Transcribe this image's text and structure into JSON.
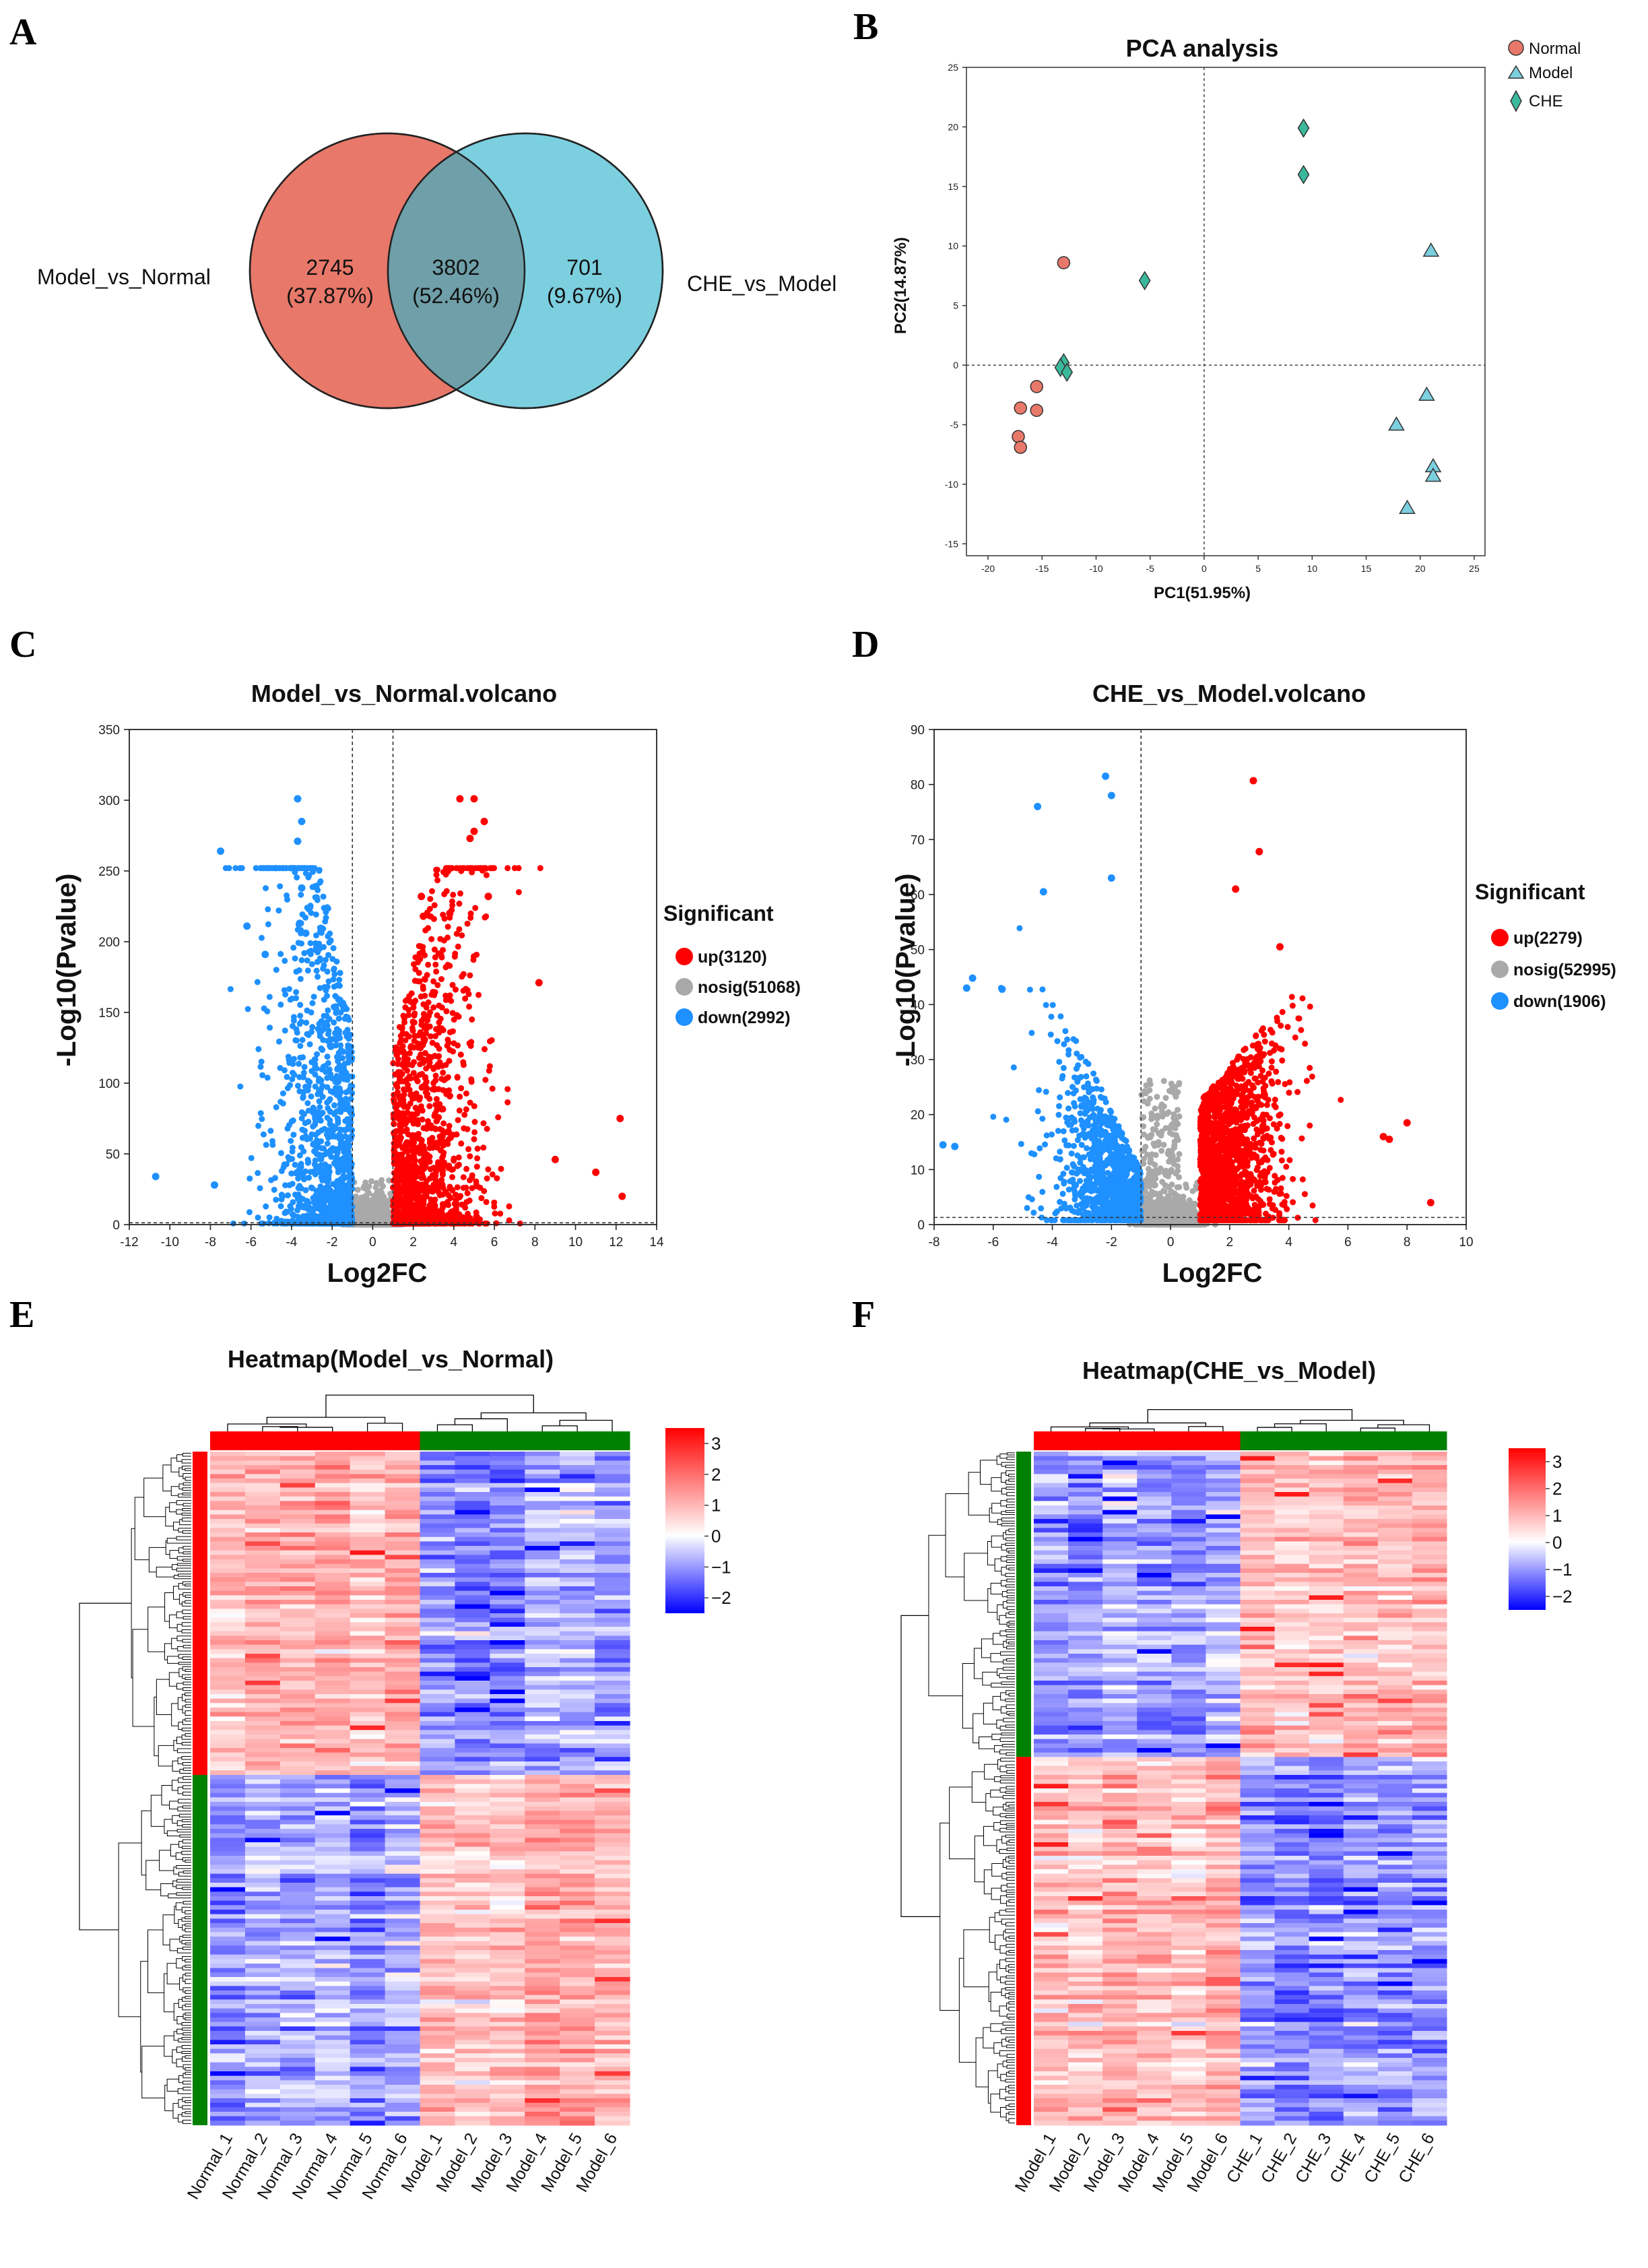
{
  "panel_letters": [
    "A",
    "B",
    "C",
    "D",
    "E",
    "F"
  ],
  "colors": {
    "normal": "#e8786a",
    "model": "#7ccfdf",
    "overlap": "#6f9fa9",
    "che": "#3bb89b",
    "up": "#ff0000",
    "nosig": "#a9a9a9",
    "down": "#1e90ff",
    "group_red": "#ff0000",
    "group_green": "#008000"
  },
  "chart_data": [
    {
      "panel": "A",
      "type": "venn",
      "sets": [
        "Model_vs_Normal",
        "CHE_vs_Model"
      ],
      "regions": [
        {
          "label": "Model_vs_Normal only",
          "count": "2745",
          "percent": "(37.87%)"
        },
        {
          "label": "intersection",
          "count": "3802",
          "percent": "(52.46%)"
        },
        {
          "label": "CHE_vs_Model only",
          "count": "701",
          "percent": "(9.67%)"
        }
      ]
    },
    {
      "panel": "B",
      "type": "scatter",
      "title": "PCA analysis",
      "xlabel": "PC1(51.95%)",
      "ylabel": "PC2(14.87%)",
      "xlim": [
        -22,
        26
      ],
      "ylim": [
        -16,
        25
      ],
      "xticks": [
        -20,
        -15,
        -10,
        -5,
        0,
        5,
        10,
        15,
        20,
        25
      ],
      "yticks": [
        -15,
        -10,
        -5,
        0,
        5,
        10,
        15,
        20,
        25
      ],
      "series": [
        {
          "name": "Normal",
          "marker": "circle",
          "points": [
            [
              -13,
              8.6
            ],
            [
              -17,
              -3.6
            ],
            [
              -15.5,
              -1.8
            ],
            [
              -15.5,
              -3.8
            ],
            [
              -17.2,
              -6.0
            ],
            [
              -17,
              -6.9
            ]
          ]
        },
        {
          "name": "Model",
          "marker": "triangle",
          "points": [
            [
              21,
              9.6
            ],
            [
              20.6,
              -2.5
            ],
            [
              17.8,
              -5.0
            ],
            [
              21.2,
              -8.5
            ],
            [
              21.2,
              -9.3
            ],
            [
              18.8,
              -12.0
            ]
          ]
        },
        {
          "name": "CHE",
          "marker": "diamond",
          "points": [
            [
              9.2,
              19.9
            ],
            [
              9.2,
              16.0
            ],
            [
              -5.5,
              7.1
            ],
            [
              -13,
              0.2
            ],
            [
              -13.3,
              -0.2
            ],
            [
              -12.7,
              -0.6
            ]
          ]
        }
      ]
    },
    {
      "panel": "C",
      "type": "scatter",
      "subtype": "volcano",
      "title": "Model_vs_Normal.volcano",
      "xlabel": "Log2FC",
      "ylabel": "-Log10(Pvalue)",
      "xlim": [
        -12,
        14
      ],
      "ylim": [
        0,
        350
      ],
      "xticks": [
        -12,
        -10,
        -8,
        -6,
        -4,
        -2,
        0,
        2,
        4,
        6,
        8,
        10,
        12,
        14
      ],
      "yticks": [
        0,
        50,
        100,
        150,
        200,
        250,
        300,
        350
      ],
      "fc_threshold": 1,
      "p_line": 1.3,
      "legend_title": "Significant",
      "groups": [
        {
          "name": "up",
          "label": "up(3120)",
          "count": 3120
        },
        {
          "name": "nosig",
          "label": "nosig(51068)",
          "count": 51068
        },
        {
          "name": "down",
          "label": "down(2992)",
          "count": 2992
        }
      ],
      "highlights": [
        [
          -3.7,
          301
        ],
        [
          -3.5,
          285
        ],
        [
          -3.7,
          271
        ],
        [
          -7.5,
          264
        ],
        [
          -2.8,
          239
        ],
        [
          -3.5,
          238
        ],
        [
          -6.2,
          211
        ],
        [
          -3.6,
          213
        ],
        [
          -3.3,
          206
        ],
        [
          -5.3,
          191
        ],
        [
          -10.7,
          34
        ],
        [
          -7.8,
          28
        ],
        [
          4.3,
          301
        ],
        [
          5.0,
          301
        ],
        [
          5.5,
          285
        ],
        [
          5.0,
          278
        ],
        [
          4.8,
          273
        ],
        [
          5.7,
          232
        ],
        [
          2.4,
          232
        ],
        [
          2.5,
          218
        ],
        [
          3.8,
          220
        ],
        [
          8.2,
          171
        ],
        [
          9.0,
          46
        ],
        [
          12.2,
          75
        ],
        [
          11.0,
          37
        ],
        [
          12.3,
          20
        ]
      ],
      "seed": 11
    },
    {
      "panel": "D",
      "type": "scatter",
      "subtype": "volcano",
      "title": "CHE_vs_Model.volcano",
      "xlabel": "Log2FC",
      "ylabel": "-Log10(Pvalue)",
      "xlim": [
        -8,
        10
      ],
      "ylim": [
        0,
        90
      ],
      "xticks": [
        -8,
        -6,
        -4,
        -2,
        0,
        2,
        4,
        6,
        8,
        10
      ],
      "yticks": [
        0,
        10,
        20,
        30,
        40,
        50,
        60,
        70,
        80,
        90
      ],
      "fc_threshold": 1,
      "fc_line_side": "negative",
      "p_line": 1.3,
      "legend_title": "Significant",
      "groups": [
        {
          "name": "up",
          "label": "up(2279)",
          "count": 2279
        },
        {
          "name": "nosig",
          "label": "nosig(52995)",
          "count": 52995
        },
        {
          "name": "down",
          "label": "down(1906)",
          "count": 1906
        }
      ],
      "highlights": [
        [
          -2.2,
          81.5
        ],
        [
          -2.0,
          78
        ],
        [
          -4.5,
          76
        ],
        [
          -2.0,
          63
        ],
        [
          -4.3,
          60.5
        ],
        [
          -6.7,
          44.8
        ],
        [
          -5.7,
          42.8
        ],
        [
          -6.9,
          43
        ],
        [
          -7.7,
          14.5
        ],
        [
          -7.3,
          14.2
        ],
        [
          2.8,
          80.7
        ],
        [
          3.0,
          67.8
        ],
        [
          2.2,
          61
        ],
        [
          3.7,
          50.5
        ],
        [
          8.0,
          18.5
        ],
        [
          8.8,
          4
        ],
        [
          7.4,
          15.5
        ],
        [
          7.2,
          16
        ]
      ],
      "seed": 29
    },
    {
      "panel": "E",
      "type": "heatmap",
      "title": "Heatmap(Model_vs_Normal)",
      "samples": [
        "Normal_1",
        "Normal_2",
        "Normal_3",
        "Normal_4",
        "Normal_5",
        "Normal_6",
        "Model_1",
        "Model_2",
        "Model_3",
        "Model_4",
        "Model_5",
        "Model_6"
      ],
      "sample_groups": [
        "red",
        "red",
        "red",
        "red",
        "red",
        "red",
        "green",
        "green",
        "green",
        "green",
        "green",
        "green"
      ],
      "row_clusters": [
        {
          "color": "red",
          "fraction": 0.48,
          "pattern": "up_in_first"
        },
        {
          "color": "green",
          "fraction": 0.52,
          "pattern": "up_in_second"
        }
      ],
      "colorbar": {
        "min": -2.5,
        "max": 3.5,
        "ticks": [
          3,
          2,
          1,
          0,
          -1,
          -2
        ]
      },
      "seed": 7
    },
    {
      "panel": "F",
      "type": "heatmap",
      "title": "Heatmap(CHE_vs_Model)",
      "samples": [
        "Model_1",
        "Model_2",
        "Model_3",
        "Model_4",
        "Model_5",
        "Model_6",
        "CHE_1",
        "CHE_2",
        "CHE_3",
        "CHE_4",
        "CHE_5",
        "CHE_6"
      ],
      "sample_groups": [
        "red",
        "red",
        "red",
        "red",
        "red",
        "red",
        "green",
        "green",
        "green",
        "green",
        "green",
        "green"
      ],
      "row_clusters": [
        {
          "color": "green",
          "fraction": 0.45,
          "pattern": "up_in_second"
        },
        {
          "color": "red",
          "fraction": 0.55,
          "pattern": "up_in_first"
        }
      ],
      "colorbar": {
        "min": -2.5,
        "max": 3.5,
        "ticks": [
          3,
          2,
          1,
          0,
          -1,
          -2
        ]
      },
      "seed": 19
    }
  ]
}
